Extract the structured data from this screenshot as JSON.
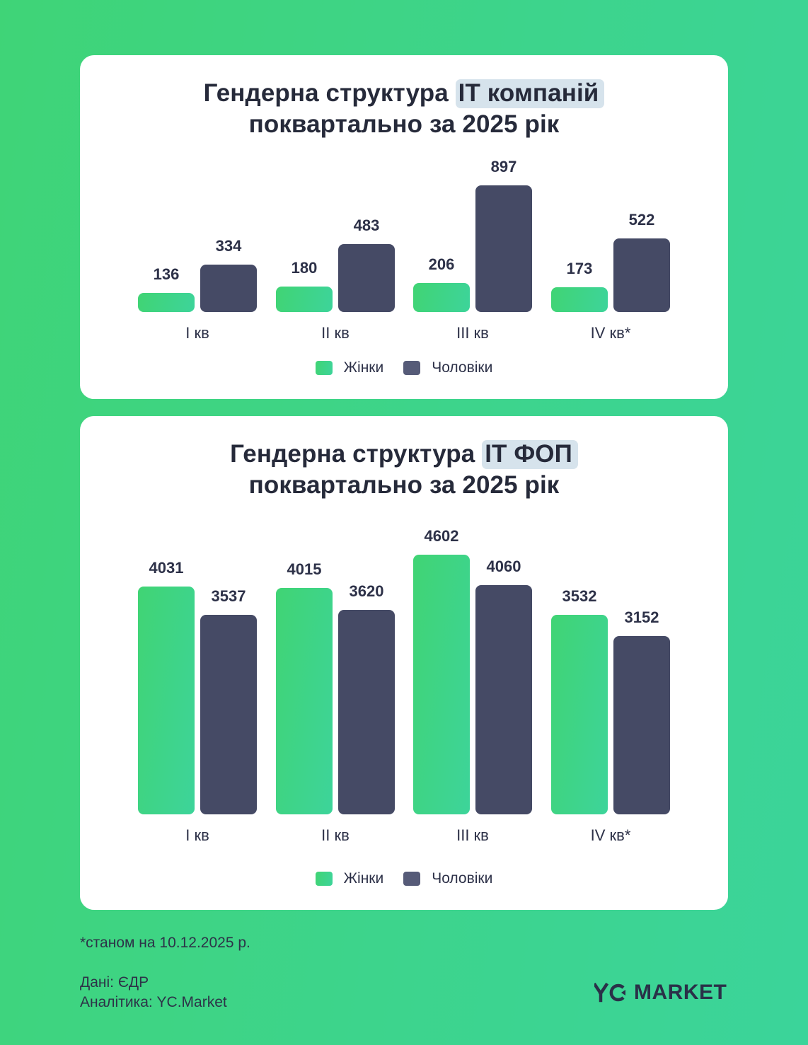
{
  "charts": [
    {
      "title_pre": "Гендерна структура ",
      "title_highlight": "IT компаній",
      "title_line2": "поквартально за 2025 рік",
      "categories": [
        "I кв",
        "II кв",
        "III кв",
        "IV кв*"
      ],
      "women": [
        136,
        180,
        206,
        173
      ],
      "men": [
        334,
        483,
        897,
        522
      ],
      "women_labels": [
        "136",
        "180",
        "206",
        "173"
      ],
      "men_labels": [
        "334",
        "483",
        "897",
        "522"
      ],
      "legend": {
        "women": "Жінки",
        "men": "Чоловіки"
      }
    },
    {
      "title_pre": "Гендерна структура ",
      "title_highlight": "IT ФОП",
      "title_line2": "поквартально за 2025 рік",
      "categories": [
        "I кв",
        "II кв",
        "III кв",
        "IV кв*"
      ],
      "women": [
        4031,
        4015,
        4602,
        3532
      ],
      "men": [
        3537,
        3620,
        4060,
        3152
      ],
      "women_labels": [
        "4031",
        "4015",
        "4602",
        "3532"
      ],
      "men_labels": [
        "3537",
        "3620",
        "4060",
        "3152"
      ],
      "legend": {
        "women": "Жінки",
        "men": "Чоловіки"
      }
    }
  ],
  "footer": {
    "note": "*станом на 10.12.2025 р.",
    "data_source": "Дані: ЄДР",
    "analytics": "Аналітика: YC.Market",
    "logo_text": "YC MARKET"
  },
  "colors": {
    "background_start": "#3fd477",
    "background_end": "#3bd49a",
    "women": "#3fd47f",
    "men": "#454a65",
    "title_highlight": "#d6e3ec",
    "text": "#262a3a"
  },
  "chart_data": [
    {
      "type": "bar",
      "title": "Гендерна структура IT компаній поквартально за 2025 рік",
      "categories": [
        "I кв",
        "II кв",
        "III кв",
        "IV кв*"
      ],
      "series": [
        {
          "name": "Жінки",
          "values": [
            136,
            180,
            206,
            173
          ]
        },
        {
          "name": "Чоловіки",
          "values": [
            334,
            483,
            897,
            522
          ]
        }
      ],
      "xlabel": "",
      "ylabel": "",
      "grid": false,
      "data_labels": true,
      "legend_position": "bottom"
    },
    {
      "type": "bar",
      "title": "Гендерна структура IT ФОП поквартально за 2025 рік",
      "categories": [
        "I кв",
        "II кв",
        "III кв",
        "IV кв*"
      ],
      "series": [
        {
          "name": "Жінки",
          "values": [
            4031,
            4015,
            4602,
            3532
          ]
        },
        {
          "name": "Чоловіки",
          "values": [
            3537,
            3620,
            4060,
            3152
          ]
        }
      ],
      "xlabel": "",
      "ylabel": "",
      "grid": false,
      "data_labels": true,
      "legend_position": "bottom"
    }
  ]
}
